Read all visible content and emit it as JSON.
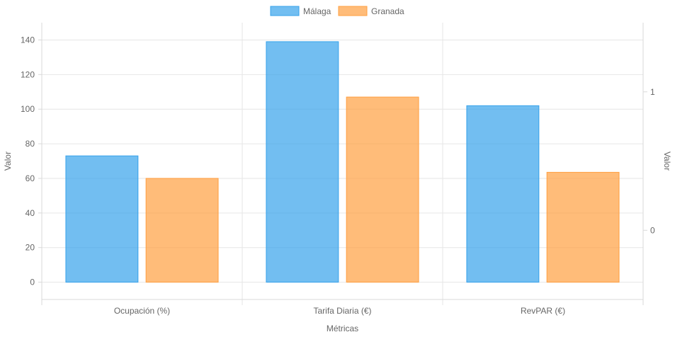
{
  "chart_data": {
    "type": "bar",
    "categories": [
      "Ocupación (%)",
      "Tarifa Diaria (€)",
      "RevPAR (€)"
    ],
    "series": [
      {
        "name": "Málaga",
        "values": [
          73,
          139,
          102
        ],
        "color": "#36a2eb"
      },
      {
        "name": "Granada",
        "values": [
          60,
          107,
          63.5
        ],
        "color": "#ff9f40"
      }
    ],
    "xlabel": "Métricas",
    "ylabel": "Valor",
    "y2label": "Valor",
    "ylim": [
      -10,
      150
    ],
    "yticks": [
      "140",
      "120",
      "100",
      "80",
      "60",
      "40",
      "20",
      "0"
    ],
    "y2lim": [
      -0.5,
      1.5
    ],
    "y2ticks": [
      "1",
      "0"
    ],
    "grid": true,
    "legend_position": "top-center"
  }
}
